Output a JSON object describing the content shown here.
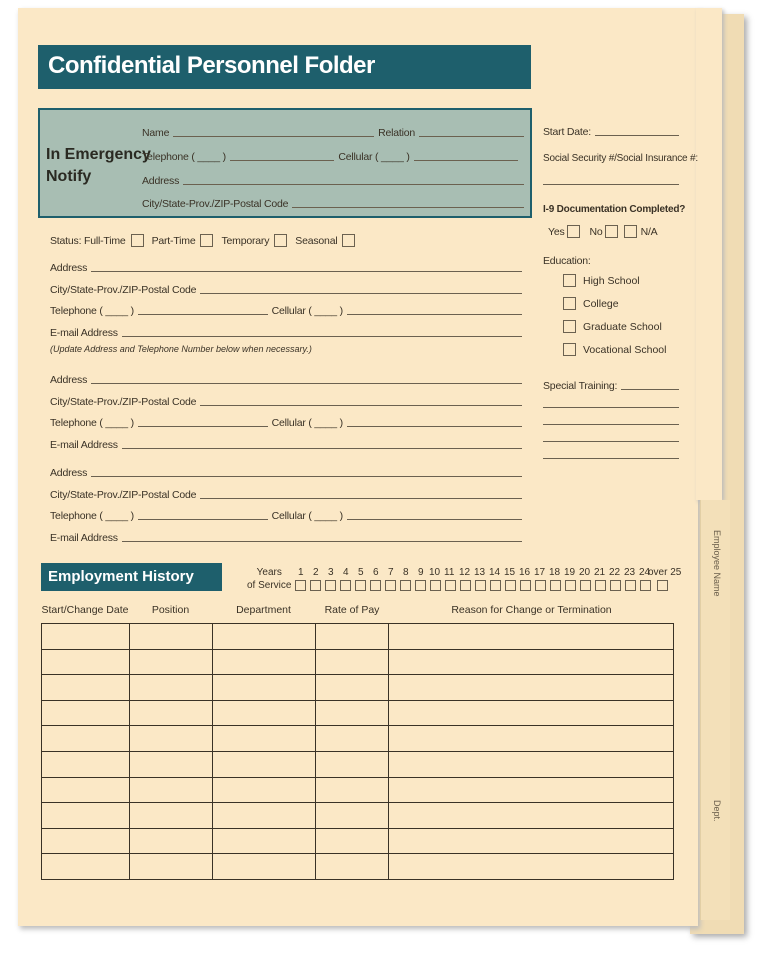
{
  "tab": {
    "employee_name": "Employee Name",
    "dept": "Dept."
  },
  "title": "Confidential Personnel Folder",
  "emergency": {
    "heading1": "In Emergency",
    "heading2": "Notify",
    "name": "Name",
    "relation": "Relation",
    "telephone": "Telephone ( ____ )",
    "cellular": "Cellular ( ____ )",
    "address": "Address",
    "city": "City/State-Prov./ZIP-Postal Code"
  },
  "status": {
    "label": "Status: Full-Time",
    "part_time": "Part-Time",
    "temporary": "Temporary",
    "seasonal": "Seasonal"
  },
  "contact": {
    "address": "Address",
    "city": "City/State-Prov./ZIP-Postal Code",
    "telephone": "Telephone ( ____ )",
    "cellular": "Cellular ( ____ )",
    "email": "E-mail Address",
    "note": "(Update Address and Telephone Number below when necessary.)"
  },
  "right": {
    "start_date": "Start Date:",
    "ssn": "Social Security #/Social Insurance #:",
    "i9": "I-9 Documentation Completed?",
    "yes": "Yes",
    "no": "No",
    "na": "N/A",
    "education": "Education:",
    "edu_options": [
      "High School",
      "College",
      "Graduate School",
      "Vocational School"
    ],
    "special_training": "Special Training:"
  },
  "employment": {
    "heading": "Employment History",
    "years_label1": "Years",
    "years_label2": "of Service",
    "years": [
      "1",
      "2",
      "3",
      "4",
      "5",
      "6",
      "7",
      "8",
      "9",
      "10",
      "11",
      "12",
      "13",
      "14",
      "15",
      "16",
      "17",
      "18",
      "19",
      "20",
      "21",
      "22",
      "23",
      "24",
      "over 25"
    ],
    "columns": [
      "Start/Change Date",
      "Position",
      "Department",
      "Rate of Pay",
      "Reason for Change or Termination"
    ]
  }
}
